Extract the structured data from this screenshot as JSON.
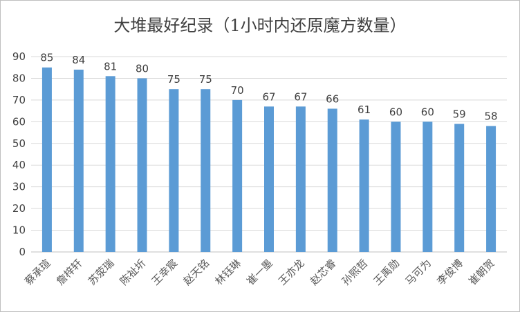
{
  "chart_data": {
    "type": "bar",
    "title": "大堆最好纪录（1小时内还原魔方数量）",
    "xlabel": "",
    "ylabel": "",
    "ylim": [
      0,
      90
    ],
    "yticks": [
      0,
      10,
      20,
      30,
      40,
      50,
      60,
      70,
      80,
      90
    ],
    "grid": true,
    "legend": "none",
    "bar_color": "#5b9bd5",
    "categories": [
      "蔡承瑄",
      "詹梓轩",
      "苏荥瑞",
      "陈祉圻",
      "王幸宸",
      "赵天铭",
      "林钰琳",
      "崔一墨",
      "王亦龙",
      "赵芯睿",
      "孙熙哲",
      "王禹勋",
      "马可为",
      "李俊博",
      "崔朝贺"
    ],
    "values": [
      85,
      84,
      81,
      80,
      75,
      75,
      70,
      67,
      67,
      66,
      61,
      60,
      60,
      59,
      58
    ]
  }
}
